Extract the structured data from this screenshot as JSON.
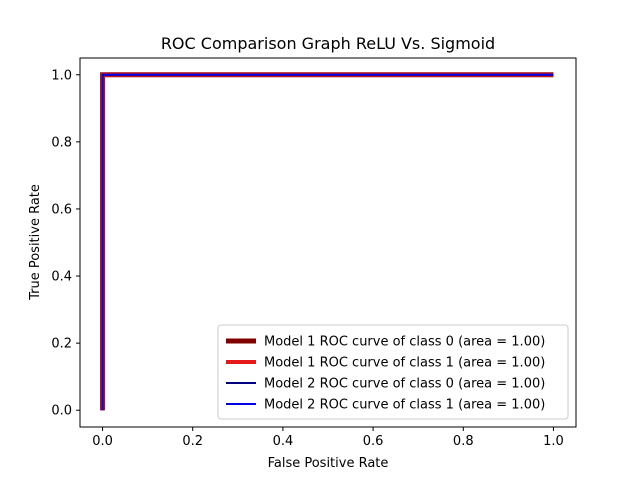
{
  "chart_data": {
    "type": "line",
    "title": "ROC Comparison Graph ReLU Vs. Sigmoid",
    "xlabel": "False Positive Rate",
    "ylabel": "True Positive Rate",
    "xlim": [
      -0.05,
      1.05
    ],
    "ylim": [
      -0.05,
      1.05
    ],
    "xticks": [
      0.0,
      0.2,
      0.4,
      0.6,
      0.8,
      1.0
    ],
    "xtick_labels": [
      "0.0",
      "0.2",
      "0.4",
      "0.6",
      "0.8",
      "1.0"
    ],
    "yticks": [
      0.0,
      0.2,
      0.4,
      0.6,
      0.8,
      1.0
    ],
    "ytick_labels": [
      "0.0",
      "0.2",
      "0.4",
      "0.6",
      "0.8",
      "1.0"
    ],
    "grid": false,
    "legend_position": "lower-right",
    "series": [
      {
        "name": "Model 1 ROC curve of class 0 (area = 1.00)",
        "color": "#800000",
        "x": [
          0.0,
          0.0,
          1.0
        ],
        "y": [
          0.0,
          1.0,
          1.0
        ]
      },
      {
        "name": "Model 1 ROC curve of class 1 (area = 1.00)",
        "color": "#e41a1c",
        "x": [
          0.0,
          0.0,
          1.0
        ],
        "y": [
          0.0,
          1.0,
          1.0
        ]
      },
      {
        "name": "Model 2 ROC curve of class 0 (area = 1.00)",
        "color": "#000080",
        "x": [
          0.0,
          0.0,
          1.0
        ],
        "y": [
          0.0,
          1.0,
          1.0
        ]
      },
      {
        "name": "Model 2 ROC curve of class 1 (area = 1.00)",
        "color": "#0000e0",
        "x": [
          0.0,
          0.0,
          1.0
        ],
        "y": [
          0.0,
          1.0,
          1.0
        ]
      }
    ]
  }
}
